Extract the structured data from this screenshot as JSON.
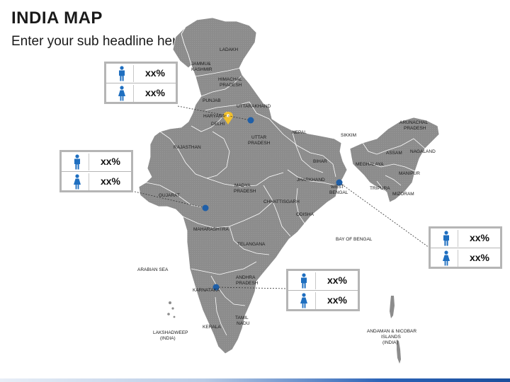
{
  "header": {
    "title": "INDIA MAP",
    "subtitle": "Enter your sub headline here"
  },
  "map": {
    "fill_color": "#8c8c8c",
    "border_color": "#ffffff",
    "marker_color": "#1f5fa8",
    "pin_color": "#f2c12e",
    "labels": {
      "ladakh": "LADAKH",
      "jk1": "JAMMU&",
      "jk2": "KASHMIR",
      "hp1": "HIMACHAL",
      "hp2": "PRADESH",
      "punjab": "PUNJAB",
      "uttarakhand": "UTTARAKHAND",
      "haryana": "HARYANA",
      "delhi": "DELHI",
      "rajasthan": "RAJASTHAN",
      "up1": "UTTAR",
      "up2": "PRADESH",
      "nepal": "NEPAL",
      "sikkim": "SIKKIM",
      "ap_n1": "ARUNACHAL",
      "ap_n2": "PRADESH",
      "assam": "ASSAM",
      "nagaland": "NAGALAND",
      "meghalaya": "MEGHALAYA",
      "manipur": "MANIPUR",
      "tripura": "TRIPURA",
      "mizoram": "MIZORAM",
      "bihar": "BIHAR",
      "jharkhand": "JHARKHAND",
      "wb1": "WEST",
      "wb2": "BENGAL",
      "gujarat": "GUJARAT",
      "mp1": "MADYA",
      "mp2": "PRADESH",
      "chhattisgarh": "CHHATTISGARH",
      "odisha": "ODISHA",
      "maharashtra": "MAHARASHTRA",
      "telangana": "TELANGANA",
      "bay": "BAY OF BENGAL",
      "arabian": "ARABIAN SEA",
      "andhra1": "ANDHRA",
      "andhra2": "PRADESH",
      "karnataka": "KARNATAKA",
      "tn1": "TAMIL",
      "tn2": "NADU",
      "kerala": "KERALA",
      "lak1": "LAKSHADWEEP",
      "lak2": "(INDIA)",
      "an1": "ANDAMAN & NICOBAR",
      "an2": "ISLANDS",
      "an3": "(INDIA)"
    }
  },
  "cards": [
    {
      "male_value": "xx%",
      "female_value": "xx%"
    },
    {
      "male_value": "xx%",
      "female_value": "xx%"
    },
    {
      "male_value": "xx%",
      "female_value": "xx%"
    },
    {
      "male_value": "xx%",
      "female_value": "xx%"
    }
  ],
  "icons": {
    "male": "male-person-icon",
    "female": "female-person-icon",
    "pin": "location-pin-icon",
    "marker": "map-marker-dot"
  },
  "colors": {
    "icon_blue": "#1f6fc0",
    "card_border": "#b5b5b5",
    "footer_accent": "#2b63b7"
  }
}
